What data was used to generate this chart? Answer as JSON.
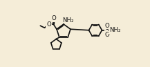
{
  "bg_color": "#f5edd8",
  "line_color": "#111111",
  "line_width": 1.2,
  "font_size": 6.5,
  "fig_width": 2.17,
  "fig_height": 0.97,
  "dpi": 100,
  "xlim": [
    0,
    21.7
  ],
  "ylim": [
    0,
    9.7
  ]
}
